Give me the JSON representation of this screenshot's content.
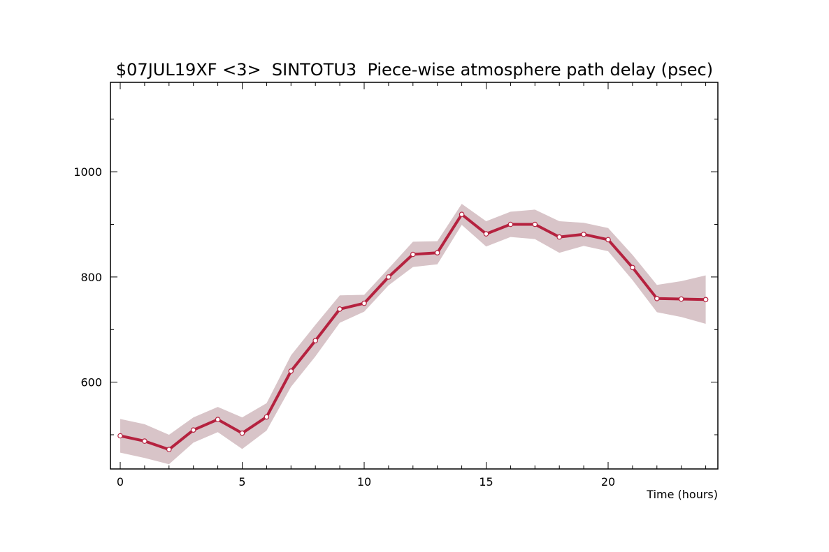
{
  "colors": {
    "line": "#b5223f",
    "band": "#d8c4c8",
    "marker_fill": "#ffffff",
    "axis": "#000000"
  },
  "chart_data": {
    "type": "line",
    "title": "$07JUL19XF <3>  SINTOTU3  Piece-wise atmosphere path delay (psec)",
    "xlabel": "Time (hours)",
    "ylabel": "",
    "xlim": [
      -0.4,
      24.5
    ],
    "ylim": [
      435,
      1170
    ],
    "x_ticks": [
      0,
      5,
      10,
      15,
      20
    ],
    "y_ticks": [
      600,
      800,
      1000
    ],
    "grid": false,
    "series": [
      {
        "x": [
          0,
          1,
          2,
          3,
          4,
          5,
          6,
          7,
          8,
          9,
          10,
          11,
          12,
          13,
          14,
          15,
          16,
          17,
          18,
          19,
          20,
          21,
          22,
          23,
          24
        ],
        "y": [
          498,
          488,
          472,
          509,
          529,
          503,
          534,
          621,
          679,
          739,
          750,
          800,
          843,
          846,
          919,
          882,
          900,
          900,
          876,
          881,
          871,
          818,
          759,
          758,
          757
        ],
        "error": [
          32,
          32,
          28,
          24,
          24,
          30,
          26,
          30,
          30,
          26,
          16,
          16,
          24,
          22,
          20,
          24,
          24,
          28,
          30,
          22,
          22,
          24,
          26,
          34,
          46
        ]
      }
    ]
  }
}
